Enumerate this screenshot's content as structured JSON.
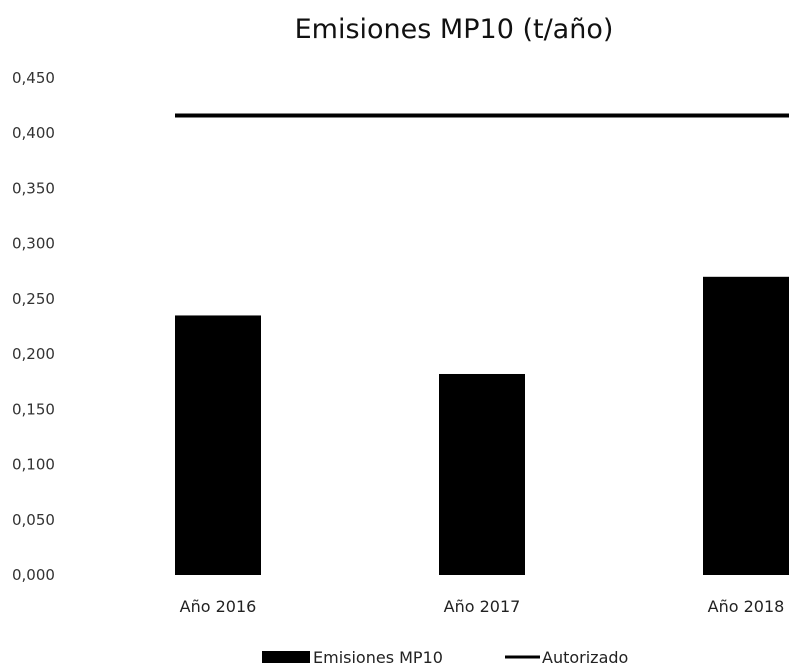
{
  "chart_data": {
    "type": "bar",
    "title": "Emisiones MP10 (t/año)",
    "categories": [
      "Año 2016",
      "Año 2017",
      "Año 2018"
    ],
    "series": [
      {
        "name": "Emisiones MP10",
        "type": "bar",
        "values": [
          0.235,
          0.182,
          0.27
        ],
        "color": "#000000"
      },
      {
        "name": "Autorizado",
        "type": "line",
        "values": [
          0.416,
          0.416,
          0.416
        ],
        "color": "#000000"
      }
    ],
    "y_ticks": [
      "0,000",
      "0,050",
      "0,100",
      "0,150",
      "0,200",
      "0,250",
      "0,300",
      "0,350",
      "0,400",
      "0,450"
    ],
    "ylim": [
      0,
      0.45
    ],
    "grid": false,
    "legend_position": "bottom"
  }
}
